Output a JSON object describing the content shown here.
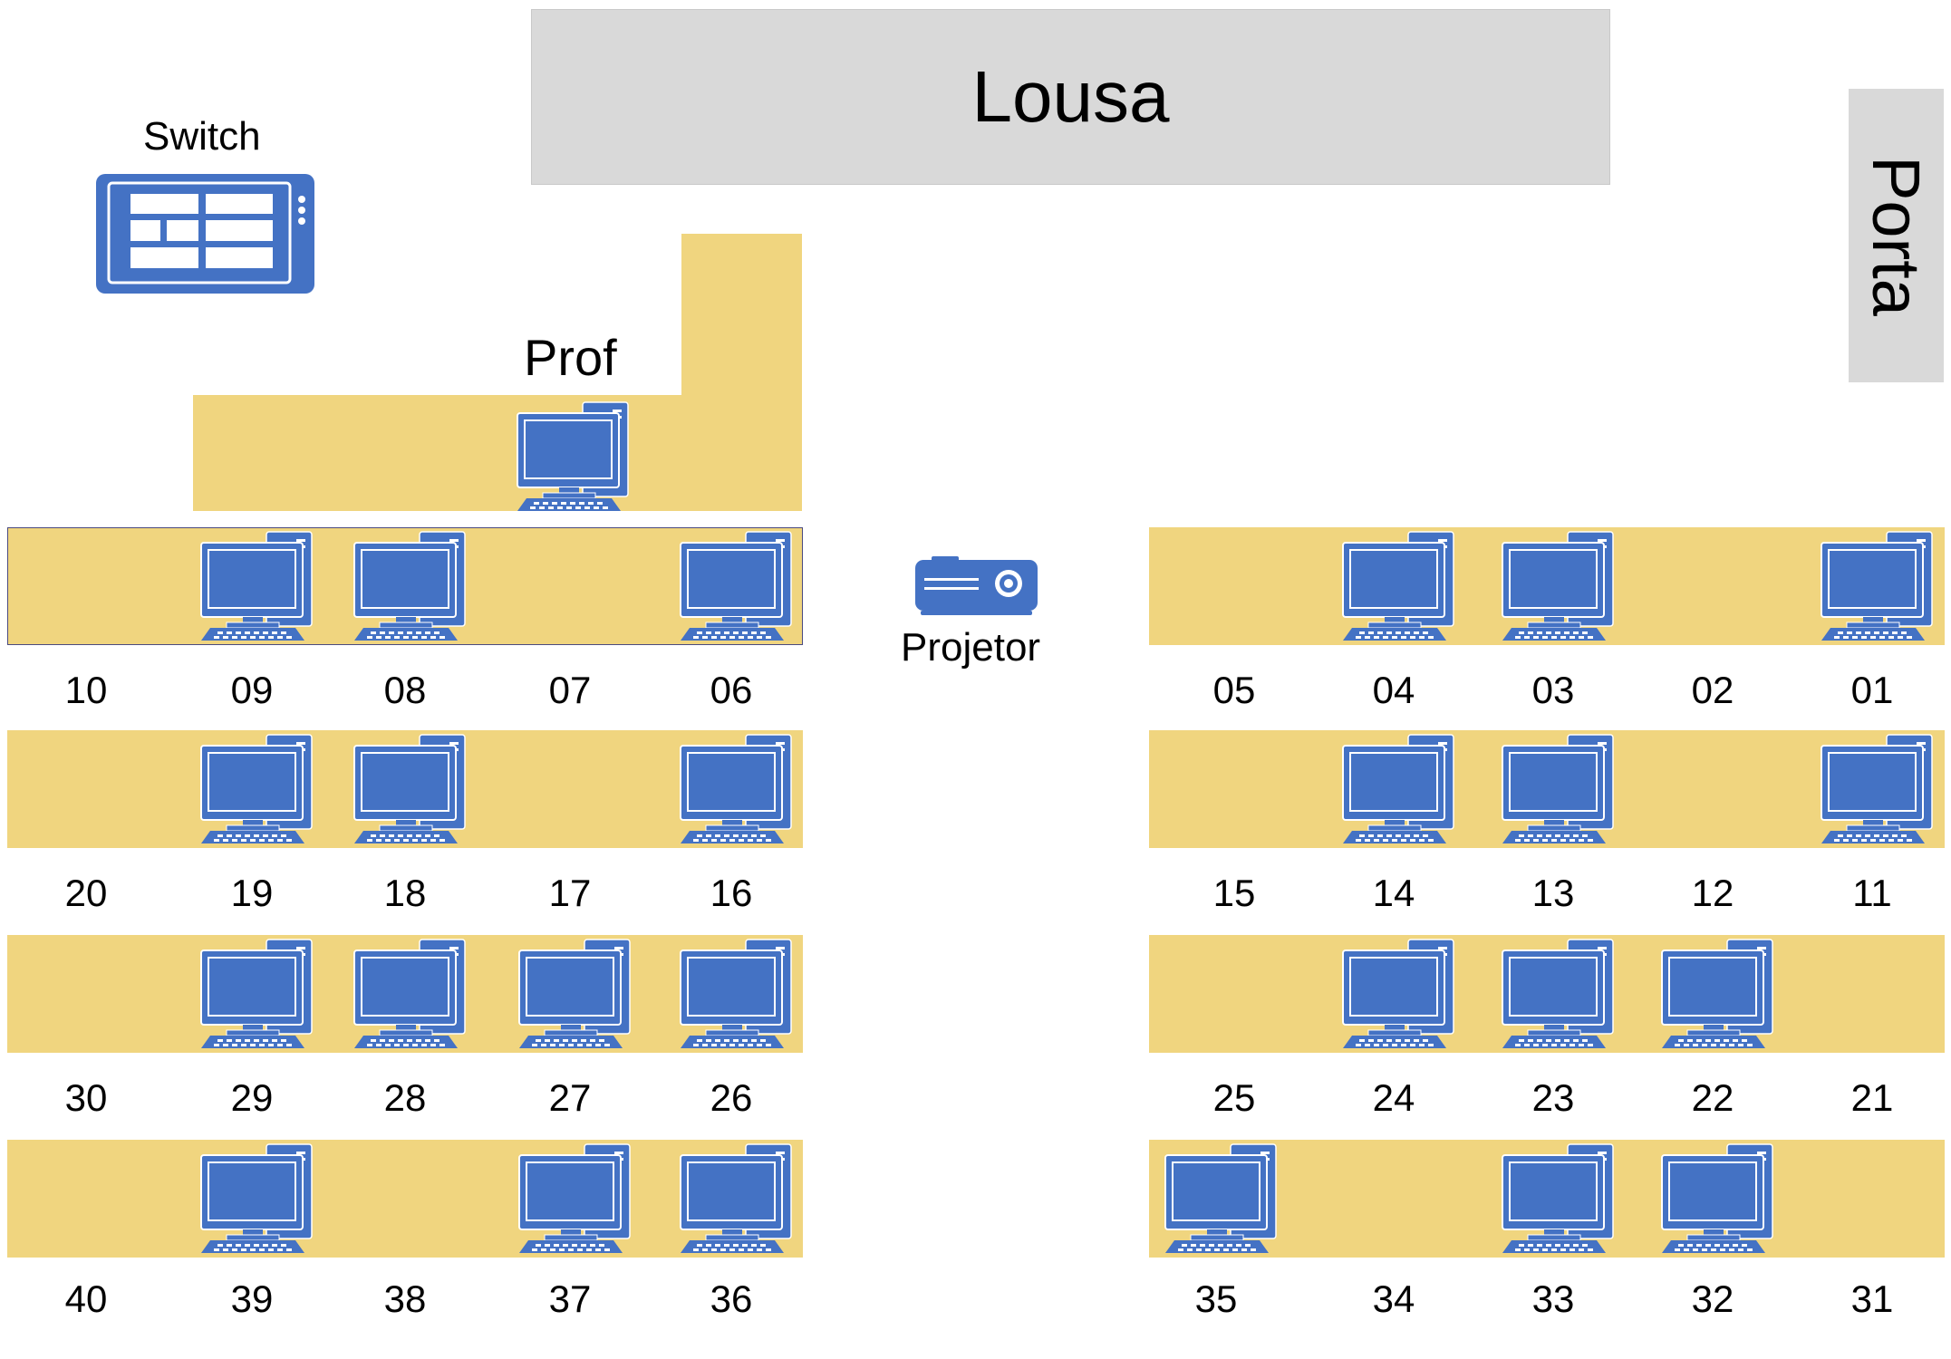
{
  "board": {
    "label": "Lousa"
  },
  "door": {
    "label": "Porta"
  },
  "switch": {
    "label": "Switch",
    "icon": "network-switch-icon"
  },
  "teacher": {
    "label": "Prof",
    "has_computer": true
  },
  "projector": {
    "label": "Projetor",
    "icon": "projector-icon"
  },
  "colors": {
    "desk": "#f0d57f",
    "device": "#4472c4",
    "board": "#d9d9d9"
  },
  "rows": {
    "left": [
      {
        "seats": [
          {
            "num": "10",
            "pc": false
          },
          {
            "num": "09",
            "pc": true
          },
          {
            "num": "08",
            "pc": true
          },
          {
            "num": "07",
            "pc": false
          },
          {
            "num": "06",
            "pc": true
          }
        ]
      },
      {
        "seats": [
          {
            "num": "20",
            "pc": false
          },
          {
            "num": "19",
            "pc": true
          },
          {
            "num": "18",
            "pc": true
          },
          {
            "num": "17",
            "pc": false
          },
          {
            "num": "16",
            "pc": true
          }
        ]
      },
      {
        "seats": [
          {
            "num": "30",
            "pc": false
          },
          {
            "num": "29",
            "pc": true
          },
          {
            "num": "28",
            "pc": true
          },
          {
            "num": "27",
            "pc": true
          },
          {
            "num": "26",
            "pc": true
          }
        ]
      },
      {
        "seats": [
          {
            "num": "40",
            "pc": false
          },
          {
            "num": "39",
            "pc": true
          },
          {
            "num": "38",
            "pc": false
          },
          {
            "num": "37",
            "pc": true
          },
          {
            "num": "36",
            "pc": true
          }
        ]
      }
    ],
    "right": [
      {
        "seats": [
          {
            "num": "05",
            "pc": false
          },
          {
            "num": "04",
            "pc": true
          },
          {
            "num": "03",
            "pc": true
          },
          {
            "num": "02",
            "pc": false
          },
          {
            "num": "01",
            "pc": true
          }
        ]
      },
      {
        "seats": [
          {
            "num": "15",
            "pc": false
          },
          {
            "num": "14",
            "pc": true
          },
          {
            "num": "13",
            "pc": true
          },
          {
            "num": "12",
            "pc": false
          },
          {
            "num": "11",
            "pc": true
          }
        ]
      },
      {
        "seats": [
          {
            "num": "25",
            "pc": false
          },
          {
            "num": "24",
            "pc": true
          },
          {
            "num": "23",
            "pc": true
          },
          {
            "num": "22",
            "pc": true
          },
          {
            "num": "21",
            "pc": false
          }
        ]
      },
      {
        "seats": [
          {
            "num": "35",
            "pc": true
          },
          {
            "num": "34",
            "pc": false
          },
          {
            "num": "33",
            "pc": true
          },
          {
            "num": "32",
            "pc": true
          },
          {
            "num": "31",
            "pc": false
          }
        ]
      }
    ]
  }
}
